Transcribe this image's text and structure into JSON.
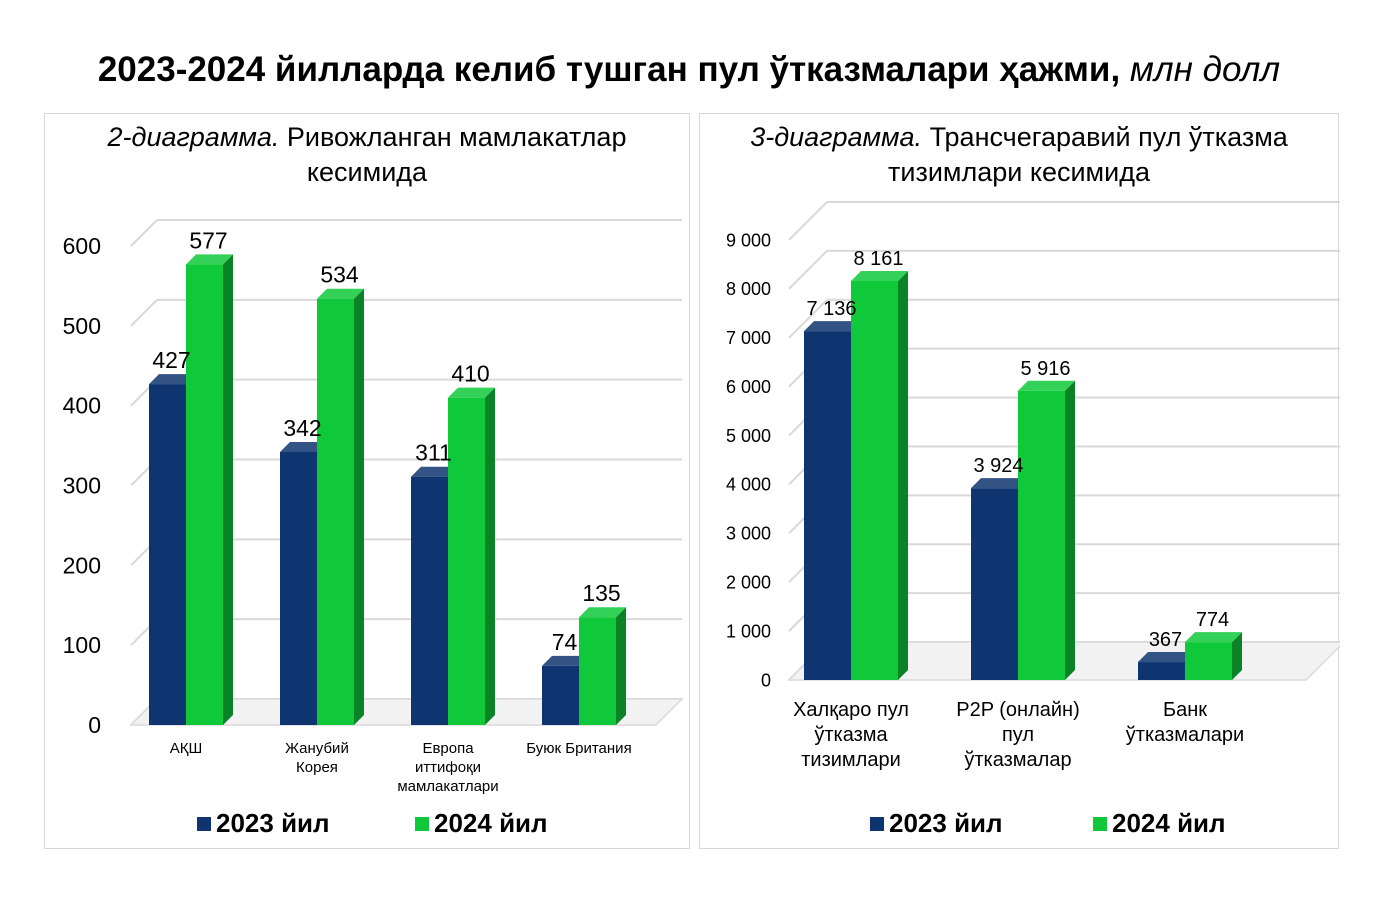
{
  "header": {
    "title": "2023-2024 йилларда келиб тушган пул ўтказмалари ҳажми,",
    "unit": "млн долл"
  },
  "colors": {
    "series_2023": "#0f3570",
    "series_2024": "#10c93a"
  },
  "chart_data": [
    {
      "type": "bar",
      "title_italic": "2-диаграмма.",
      "title_rest": "Ривожланган мамлакатлар кесимида",
      "categories": [
        "АҚШ",
        "Жанубий\nКорея",
        "Европа\nиттифоқи\nмамлакатлари",
        "Буюк Британия"
      ],
      "series": [
        {
          "name": "2023 йил",
          "values": [
            427,
            342,
            311,
            74
          ]
        },
        {
          "name": "2024 йил",
          "values": [
            577,
            534,
            410,
            135
          ]
        }
      ],
      "value_labels": [
        [
          "427",
          "342",
          "311",
          "74"
        ],
        [
          "577",
          "534",
          "410",
          "135"
        ]
      ],
      "yticks": [
        0,
        100,
        200,
        300,
        400,
        500,
        600
      ],
      "ytick_labels": [
        "0",
        "100",
        "200",
        "300",
        "400",
        "500",
        "600"
      ],
      "ylim": [
        0,
        600
      ],
      "grid": true,
      "legend": "bottom"
    },
    {
      "type": "bar",
      "title_italic": "3-диаграмма.",
      "title_rest": "Трансчегаравий пул ўтказма тизимлари кесимида",
      "categories": [
        "Халқаро пул\nўтказма\nтизимлари",
        "P2P (онлайн)\nпул\nўтказмалар",
        "Банк\nўтказмалари"
      ],
      "series": [
        {
          "name": "2023 йил",
          "values": [
            7136,
            3924,
            367
          ]
        },
        {
          "name": "2024 йил",
          "values": [
            8161,
            5916,
            774
          ]
        }
      ],
      "value_labels": [
        [
          "7 136",
          "3 924",
          "367"
        ],
        [
          "8 161",
          "5 916",
          "774"
        ]
      ],
      "yticks": [
        0,
        1000,
        2000,
        3000,
        4000,
        5000,
        6000,
        7000,
        8000,
        9000
      ],
      "ytick_labels": [
        "0",
        "1 000",
        "2 000",
        "3 000",
        "4 000",
        "5 000",
        "6 000",
        "7 000",
        "8 000",
        "9 000"
      ],
      "ylim": [
        0,
        9000
      ],
      "grid": true,
      "legend": "bottom"
    }
  ]
}
